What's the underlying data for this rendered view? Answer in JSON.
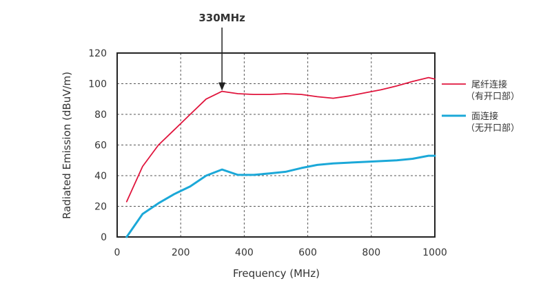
{
  "chart_data": {
    "type": "line",
    "xlabel": "Frequency (MHz)",
    "ylabel": "Radiated Emission (dBuV/m)",
    "xlim": [
      0,
      1000
    ],
    "ylim": [
      0,
      120
    ],
    "xticks": [
      0,
      200,
      400,
      600,
      800,
      1000
    ],
    "yticks": [
      0,
      20,
      40,
      60,
      80,
      100,
      120
    ],
    "xtick_labels": [
      "0",
      "200",
      "400",
      "600",
      "800",
      "1000"
    ],
    "ytick_labels": [
      "0",
      "20",
      "40",
      "60",
      "80",
      "100",
      "120"
    ],
    "grid": true,
    "legend_position": "right",
    "annotation": {
      "text": "330MHz",
      "x": 330,
      "y": 95
    },
    "series": [
      {
        "name": "尾纤连接",
        "name_line2": "（有开口部）",
        "color": "#e0143c",
        "x": [
          30,
          80,
          130,
          180,
          230,
          280,
          330,
          380,
          430,
          480,
          530,
          580,
          630,
          680,
          730,
          780,
          830,
          880,
          930,
          980,
          1000
        ],
        "y": [
          23,
          46,
          60,
          70,
          80,
          90,
          95,
          93.5,
          93,
          93,
          93.5,
          93,
          91.5,
          90.5,
          92,
          94,
          96,
          98.5,
          101.5,
          104,
          103
        ]
      },
      {
        "name": "面连接",
        "name_line2": "（无开口部）",
        "color": "#1ba8d8",
        "x": [
          30,
          80,
          130,
          180,
          230,
          280,
          330,
          380,
          430,
          480,
          530,
          580,
          630,
          680,
          730,
          780,
          830,
          880,
          930,
          980,
          1000
        ],
        "y": [
          0,
          15,
          22,
          28,
          33,
          40,
          44,
          40.5,
          40.5,
          41.5,
          42.5,
          45,
          47,
          48,
          48.5,
          49,
          49.5,
          50,
          51,
          53,
          53
        ]
      }
    ]
  }
}
